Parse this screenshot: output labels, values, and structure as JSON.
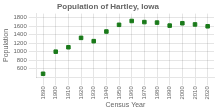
{
  "chart_data": {
    "type": "scatter",
    "title": "Population of Hartley, Iowa",
    "xlabel": "Census Year",
    "ylabel": "Population",
    "x": [
      1890,
      1900,
      1910,
      1920,
      1930,
      1940,
      1950,
      1960,
      1970,
      1980,
      1990,
      2000,
      2010,
      2020
    ],
    "values": [
      482,
      1003,
      1107,
      1328,
      1251,
      1478,
      1636,
      1726,
      1700,
      1688,
      1617,
      1673,
      1645,
      1601
    ],
    "color": "#1a7a1a",
    "marker": "square",
    "xlim": [
      1885,
      2025
    ],
    "ylim": [
      400,
      1900
    ],
    "xticks": [
      1890,
      1900,
      1910,
      1920,
      1930,
      1940,
      1950,
      1960,
      1970,
      1980,
      1990,
      2000,
      2010,
      2020
    ],
    "yticks": [
      600,
      800,
      1000,
      1200,
      1400,
      1600,
      1800
    ],
    "grid": true
  }
}
